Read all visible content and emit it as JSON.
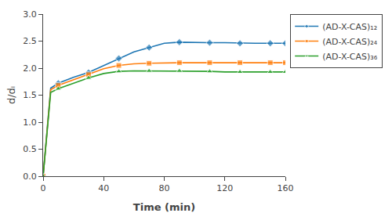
{
  "chart_data": {
    "type": "line",
    "x_label": "Time (min)",
    "y_label": "d/dᵢ",
    "x": [
      0,
      5,
      10,
      20,
      30,
      40,
      50,
      60,
      70,
      80,
      90,
      100,
      110,
      120,
      130,
      140,
      150,
      160
    ],
    "series": [
      {
        "name": "(AD-X-CAS)₁₂",
        "marker": "diamond",
        "values": [
          0,
          1.63,
          1.72,
          1.83,
          1.92,
          2.05,
          2.18,
          2.3,
          2.38,
          2.46,
          2.48,
          2.47,
          2.47,
          2.47,
          2.46,
          2.46,
          2.46,
          2.46
        ]
      },
      {
        "name": "(AD-X-CAS)₂₄",
        "marker": "square",
        "values": [
          0,
          1.6,
          1.68,
          1.78,
          1.88,
          1.99,
          2.05,
          2.08,
          2.09,
          2.1,
          2.1,
          2.1,
          2.1,
          2.1,
          2.1,
          2.1,
          2.1,
          2.1
        ]
      },
      {
        "name": "(AD-X-CAS)₃₆",
        "marker": "triangle-up",
        "values": [
          0,
          1.55,
          1.62,
          1.72,
          1.82,
          1.9,
          1.94,
          1.95,
          1.95,
          1.95,
          1.95,
          1.94,
          1.94,
          1.93,
          1.93,
          1.93,
          1.93,
          1.93
        ]
      }
    ],
    "xlim": [
      0,
      160
    ],
    "ylim": [
      0,
      3
    ],
    "xticks": [
      0,
      40,
      80,
      120,
      160
    ],
    "yticks": [
      {
        "value": 0,
        "label": "0.0"
      },
      {
        "value": 0.5,
        "label": "0.5"
      },
      {
        "value": 1,
        "label": "1.0"
      },
      {
        "value": 1.5,
        "label": "1.5"
      },
      {
        "value": 2,
        "label": "2.0"
      },
      {
        "value": 2.5,
        "label": "2.5"
      },
      {
        "value": 3,
        "label": "3.0"
      }
    ],
    "grid": false,
    "legend": "upper right"
  }
}
